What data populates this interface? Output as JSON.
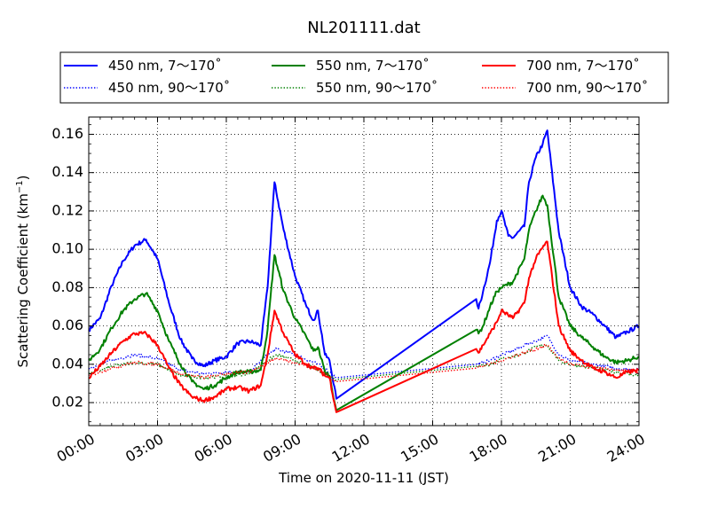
{
  "chart_data": {
    "type": "line",
    "title": "NL201111.dat",
    "xlabel": "Time on 2020-11-11 (JST)",
    "ylabel_main": "Scattering Coefficient (km",
    "ylabel_exp": "−1",
    "ylabel_close": ")",
    "xlim": [
      0,
      24
    ],
    "ylim": [
      0.008,
      0.169
    ],
    "x_ticks": [
      {
        "value": 0,
        "label": "00:00"
      },
      {
        "value": 3,
        "label": "03:00"
      },
      {
        "value": 6,
        "label": "06:00"
      },
      {
        "value": 9,
        "label": "09:00"
      },
      {
        "value": 12,
        "label": "12:00"
      },
      {
        "value": 15,
        "label": "15:00"
      },
      {
        "value": 18,
        "label": "18:00"
      },
      {
        "value": 21,
        "label": "21:00"
      },
      {
        "value": 24,
        "label": "24:00"
      }
    ],
    "y_ticks": [
      {
        "value": 0.02,
        "label": "0.02"
      },
      {
        "value": 0.04,
        "label": "0.04"
      },
      {
        "value": 0.06,
        "label": "0.06"
      },
      {
        "value": 0.08,
        "label": "0.08"
      },
      {
        "value": 0.1,
        "label": "0.10"
      },
      {
        "value": 0.12,
        "label": "0.12"
      },
      {
        "value": 0.14,
        "label": "0.14"
      },
      {
        "value": 0.16,
        "label": "0.16"
      }
    ],
    "grid": true,
    "legend_position": "top",
    "series": [
      {
        "name": "450 nm, 7～170˚",
        "color": "#0000ff",
        "style": "solid",
        "x": [
          0,
          0.5,
          1,
          1.5,
          2,
          2.5,
          3,
          3.5,
          4,
          4.5,
          5,
          5.5,
          6,
          6.5,
          7,
          7.5,
          7.8,
          8.1,
          8.5,
          9,
          9.5,
          9.8,
          10,
          10.3,
          10.5,
          10.8,
          16.9,
          17,
          17.2,
          17.5,
          17.8,
          18,
          18.3,
          18.5,
          19,
          19.2,
          19.5,
          19.8,
          20,
          20.5,
          21,
          21.5,
          22,
          22.5,
          23,
          23.5,
          24
        ],
        "y": [
          0.058,
          0.064,
          0.081,
          0.094,
          0.102,
          0.105,
          0.095,
          0.072,
          0.053,
          0.043,
          0.039,
          0.042,
          0.044,
          0.051,
          0.052,
          0.05,
          0.08,
          0.135,
          0.11,
          0.086,
          0.07,
          0.063,
          0.068,
          0.045,
          0.042,
          0.022,
          0.074,
          0.069,
          0.078,
          0.093,
          0.115,
          0.12,
          0.107,
          0.106,
          0.112,
          0.135,
          0.148,
          0.155,
          0.162,
          0.109,
          0.08,
          0.07,
          0.066,
          0.06,
          0.054,
          0.057,
          0.06
        ]
      },
      {
        "name": "450 nm, 90～170˚",
        "color": "#0000ff",
        "style": "dotted",
        "x": [
          0,
          1,
          2,
          3,
          4,
          5,
          6,
          7,
          7.8,
          8.2,
          9,
          10,
          10.5,
          10.8,
          16.9,
          17.5,
          18,
          18.5,
          19,
          19.5,
          20,
          20.5,
          21,
          22,
          23,
          24
        ],
        "y": [
          0.038,
          0.042,
          0.045,
          0.043,
          0.037,
          0.035,
          0.036,
          0.036,
          0.045,
          0.048,
          0.045,
          0.04,
          0.036,
          0.033,
          0.04,
          0.042,
          0.045,
          0.047,
          0.05,
          0.052,
          0.055,
          0.045,
          0.042,
          0.04,
          0.038,
          0.037
        ]
      },
      {
        "name": "550 nm, 7～170˚",
        "color": "#008000",
        "style": "solid",
        "x": [
          0,
          0.5,
          1,
          1.5,
          2,
          2.5,
          3,
          3.5,
          4,
          4.5,
          5,
          5.5,
          6,
          6.5,
          7,
          7.5,
          7.8,
          8.1,
          8.5,
          9,
          9.5,
          9.8,
          10,
          10.3,
          10.5,
          10.8,
          16.9,
          17,
          17.2,
          17.5,
          17.8,
          18,
          18.5,
          19,
          19.2,
          19.5,
          19.8,
          20,
          20.5,
          21,
          21.5,
          22,
          22.5,
          23,
          23.5,
          24
        ],
        "y": [
          0.042,
          0.048,
          0.059,
          0.068,
          0.074,
          0.077,
          0.068,
          0.052,
          0.04,
          0.031,
          0.027,
          0.029,
          0.033,
          0.036,
          0.036,
          0.037,
          0.058,
          0.097,
          0.078,
          0.064,
          0.054,
          0.047,
          0.049,
          0.036,
          0.034,
          0.016,
          0.058,
          0.056,
          0.06,
          0.07,
          0.078,
          0.08,
          0.083,
          0.095,
          0.11,
          0.12,
          0.128,
          0.123,
          0.075,
          0.06,
          0.054,
          0.049,
          0.044,
          0.041,
          0.042,
          0.044
        ]
      },
      {
        "name": "550 nm, 90～170˚",
        "color": "#008000",
        "style": "dotted",
        "x": [
          0,
          1,
          2,
          3,
          4,
          5,
          6,
          7,
          7.8,
          8.2,
          9,
          10,
          10.5,
          10.8,
          16.9,
          17.5,
          18,
          18.5,
          19,
          19.5,
          20,
          20.5,
          21,
          22,
          23,
          24
        ],
        "y": [
          0.035,
          0.039,
          0.041,
          0.04,
          0.034,
          0.033,
          0.034,
          0.035,
          0.042,
          0.045,
          0.042,
          0.037,
          0.034,
          0.032,
          0.039,
          0.04,
          0.043,
          0.044,
          0.046,
          0.049,
          0.05,
          0.042,
          0.04,
          0.038,
          0.036,
          0.034
        ]
      },
      {
        "name": "700 nm, 7～170˚",
        "color": "#ff0000",
        "style": "solid",
        "x": [
          0,
          0.5,
          1,
          1.5,
          2,
          2.5,
          3,
          3.5,
          4,
          4.5,
          5,
          5.5,
          6,
          6.5,
          7,
          7.5,
          7.8,
          8.1,
          8.5,
          9,
          9.5,
          9.8,
          10,
          10.3,
          10.5,
          10.8,
          16.9,
          17,
          17.2,
          17.5,
          17.8,
          18,
          18.5,
          19,
          19.2,
          19.5,
          19.8,
          20,
          20.5,
          21,
          21.5,
          22,
          22.5,
          23,
          23.5,
          24
        ],
        "y": [
          0.033,
          0.039,
          0.046,
          0.052,
          0.056,
          0.056,
          0.05,
          0.038,
          0.029,
          0.023,
          0.021,
          0.023,
          0.027,
          0.028,
          0.026,
          0.029,
          0.045,
          0.068,
          0.056,
          0.045,
          0.04,
          0.038,
          0.038,
          0.034,
          0.033,
          0.015,
          0.048,
          0.046,
          0.05,
          0.056,
          0.062,
          0.068,
          0.064,
          0.072,
          0.085,
          0.095,
          0.101,
          0.104,
          0.06,
          0.047,
          0.042,
          0.038,
          0.036,
          0.033,
          0.036,
          0.037
        ]
      },
      {
        "name": "700 nm, 90～170˚",
        "color": "#ff0000",
        "style": "dotted",
        "x": [
          0,
          1,
          2,
          3,
          4,
          5,
          6,
          7,
          7.8,
          8.2,
          9,
          10,
          10.5,
          10.8,
          16.9,
          17.5,
          18,
          18.5,
          19,
          19.5,
          20,
          20.5,
          21,
          22,
          23,
          24
        ],
        "y": [
          0.034,
          0.038,
          0.041,
          0.04,
          0.035,
          0.033,
          0.035,
          0.036,
          0.041,
          0.043,
          0.041,
          0.037,
          0.034,
          0.031,
          0.038,
          0.04,
          0.042,
          0.044,
          0.046,
          0.048,
          0.05,
          0.043,
          0.04,
          0.038,
          0.037,
          0.036
        ]
      }
    ]
  }
}
